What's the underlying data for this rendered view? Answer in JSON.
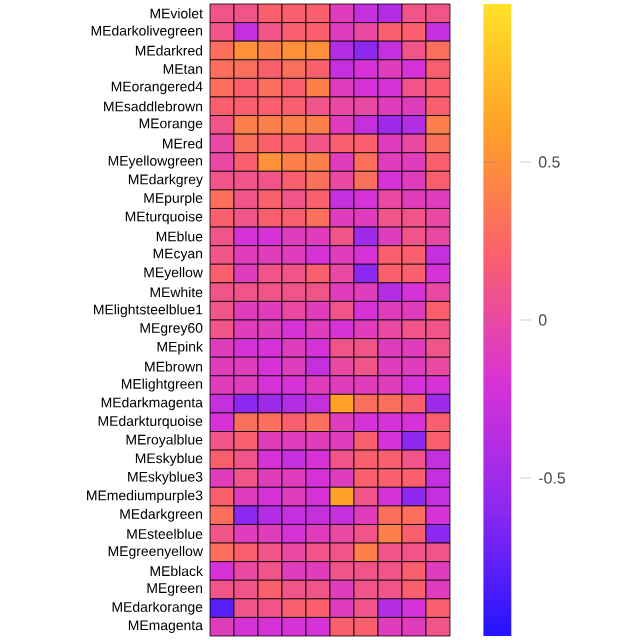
{
  "chart_data": {
    "type": "heatmap",
    "categories": [
      null,
      null,
      null,
      null,
      null,
      null,
      null,
      null,
      null,
      null
    ],
    "y_categories": [
      "MEviolet",
      "MEdarkolivegreen",
      "MEdarkred",
      "MEtan",
      "MEorangered4",
      "MEsaddlebrown",
      "MEorange",
      "MEred",
      "MEyellowgreen",
      "MEdarkgrey",
      "MEpurple",
      "MEturquoise",
      "MEblue",
      "MEcyan",
      "MEyellow",
      "MEwhite",
      "MElightsteelblue1",
      "MEgrey60",
      "MEpink",
      "MEbrown",
      "MElightgreen",
      "MEdarkmagenta",
      "MEdarkturquoise",
      "MEroyalblue",
      "MEskyblue",
      "MEskyblue3",
      "MEmediumpurple3",
      "MEdarkgreen",
      "MEsteelblue",
      "MEgreenyellow",
      "MEblack",
      "MEgreen",
      "MEdarkorange",
      "MEmagenta"
    ],
    "cells": [
      [
        0.1,
        0.1,
        0.2,
        0.2,
        0.2,
        -0.1,
        -0.3,
        -0.4,
        0.1,
        0.1
      ],
      [
        0.1,
        -0.3,
        0.1,
        0.2,
        0.2,
        -0.1,
        0,
        0.2,
        0.2,
        -0.3
      ],
      [
        0.3,
        0.5,
        0.4,
        0.5,
        0.5,
        -0.4,
        -0.6,
        -0.3,
        0.1,
        0.3
      ],
      [
        0.3,
        0.3,
        0.2,
        0.3,
        0.2,
        -0.3,
        -0.2,
        -0.1,
        -0.2,
        0.2
      ],
      [
        0.3,
        0.2,
        0.3,
        0.2,
        0.4,
        -0.1,
        -0.2,
        -0.2,
        0.1,
        0.2
      ],
      [
        0.2,
        0.2,
        0.2,
        0.2,
        0.1,
        0,
        0,
        -0.1,
        -0.1,
        0.2
      ],
      [
        0.1,
        0.4,
        0.4,
        0.4,
        0.4,
        -0.1,
        -0.3,
        -0.5,
        -0.4,
        0.4
      ],
      [
        0,
        0.3,
        0.2,
        0.2,
        0.1,
        0.2,
        0.2,
        -0.1,
        0,
        0.3
      ],
      [
        0,
        0.2,
        0.5,
        0.4,
        0.4,
        -0.1,
        0.3,
        -0.1,
        -0.1,
        0.2
      ],
      [
        0.1,
        0.1,
        0.1,
        0.2,
        0.3,
        0,
        0.3,
        -0.2,
        -0.1,
        0.2
      ],
      [
        0.3,
        0.1,
        0.2,
        0.1,
        0.2,
        -0.3,
        -0.2,
        0,
        -0.1,
        -0.1
      ],
      [
        0.2,
        0.1,
        0.2,
        0.2,
        0.3,
        -0.1,
        -0.1,
        0.1,
        0.1,
        0
      ],
      [
        0.1,
        -0.2,
        -0.2,
        -0.1,
        -0.1,
        0.1,
        -0.5,
        -0.1,
        0.1,
        0
      ],
      [
        0.1,
        -0.1,
        -0.1,
        -0.1,
        -0.2,
        -0.1,
        -0.2,
        0.2,
        0.2,
        -0.3
      ],
      [
        0.2,
        -0.1,
        0.1,
        0.1,
        0.2,
        0,
        -0.6,
        0.2,
        0.2,
        -0.2
      ],
      [
        0.1,
        0.1,
        0.1,
        0.1,
        0.1,
        -0.1,
        -0.1,
        -0.4,
        -0.2,
        0
      ],
      [
        0.1,
        -0.1,
        -0.1,
        0,
        -0.1,
        0.1,
        -0.2,
        -0.1,
        -0.1,
        0.2
      ],
      [
        0.1,
        -0.1,
        -0.1,
        -0.2,
        -0.1,
        -0.2,
        -0.1,
        0,
        0.1,
        0.1
      ],
      [
        -0.1,
        -0.2,
        -0.2,
        -0.1,
        -0.2,
        0.1,
        0.1,
        -0.1,
        -0.1,
        0.1
      ],
      [
        -0.1,
        -0.1,
        -0.2,
        -0.1,
        -0.3,
        0,
        0.1,
        -0.1,
        -0.1,
        0
      ],
      [
        -0.1,
        -0.1,
        -0.2,
        -0.2,
        -0.1,
        -0.1,
        -0.1,
        -0.1,
        -0.2,
        -0.2
      ],
      [
        -0.3,
        -0.6,
        -0.5,
        -0.4,
        -0.3,
        0.6,
        0.3,
        0.3,
        0.2,
        -0.5
      ],
      [
        -0.2,
        0.3,
        0.3,
        0.2,
        0.3,
        -0.1,
        -0.2,
        -0.2,
        -0.2,
        0.2
      ],
      [
        0.1,
        0.2,
        -0.1,
        -0.1,
        -0.1,
        -0.1,
        0.2,
        -0.2,
        -0.6,
        0.2
      ],
      [
        0.2,
        0.1,
        -0.2,
        -0.3,
        -0.2,
        0.1,
        0.2,
        0.2,
        0.1,
        -0.3
      ],
      [
        -0.1,
        0.1,
        -0.1,
        -0.1,
        -0.2,
        -0.1,
        0.2,
        0.2,
        0.2,
        -0.3
      ],
      [
        0.2,
        -0.1,
        -0.2,
        -0.1,
        -0.2,
        0.6,
        0.1,
        -0.2,
        -0.6,
        -0.3
      ],
      [
        0.3,
        -0.6,
        -0.4,
        -0.3,
        -0.3,
        -0.3,
        -0.1,
        0.3,
        0.3,
        -0.2
      ],
      [
        0.1,
        -0.1,
        -0.1,
        -0.2,
        -0.1,
        0,
        0.1,
        0.4,
        0.2,
        -0.6
      ],
      [
        0.3,
        0.2,
        0.1,
        0,
        0.1,
        0.1,
        0.4,
        0.1,
        0.1,
        0.1
      ],
      [
        -0.2,
        0,
        0.1,
        -0.1,
        -0.1,
        0.1,
        0.1,
        0.1,
        0.2,
        -0.1
      ],
      [
        0.1,
        0.1,
        0.2,
        0.1,
        0.1,
        -0.1,
        0.1,
        0.1,
        0.2,
        -0.1
      ],
      [
        -0.8,
        0.1,
        0.1,
        0.2,
        0.2,
        -0.1,
        0.1,
        -0.4,
        -0.2,
        0.2
      ],
      [
        -0.1,
        -0.2,
        -0.2,
        -0.2,
        -0.2,
        0.2,
        0.2,
        -0.1,
        -0.1,
        0.1
      ]
    ],
    "clim": [
      -1,
      1
    ],
    "cticks": [
      -0.5,
      0,
      0.5
    ]
  }
}
